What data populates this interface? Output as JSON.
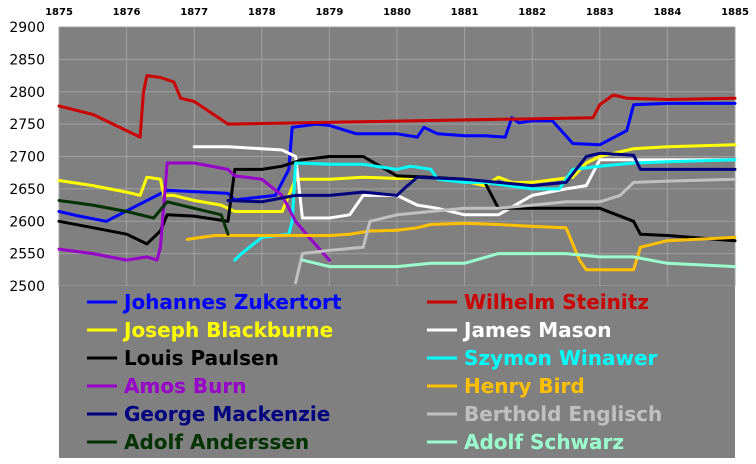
{
  "chart_data": {
    "type": "line",
    "x_ticks": [
      "1875",
      "1876",
      "1877",
      "1878",
      "1879",
      "1880",
      "1881",
      "1882",
      "1883",
      "1884",
      "1885"
    ],
    "y_ticks": [
      "2900",
      "2850",
      "2800",
      "2750",
      "2700",
      "2650",
      "2600",
      "2550",
      "2500"
    ],
    "xlim": [
      1875,
      1885
    ],
    "ylim": [
      2500,
      2900
    ],
    "grid": true,
    "background": "#808080",
    "grid_color": "#a0a0a0",
    "legend_placement": "bottom-inside",
    "series": [
      {
        "name": "Johannes Zukertort",
        "color": "#0000ff",
        "points": [
          [
            1875,
            2615
          ],
          [
            1875.3,
            2608
          ],
          [
            1875.7,
            2600
          ],
          [
            1876.6,
            2648
          ],
          [
            1877.5,
            2643
          ],
          [
            1877.6,
            2633
          ],
          [
            1878.2,
            2640
          ],
          [
            1878.4,
            2680
          ],
          [
            1878.45,
            2745
          ],
          [
            1878.8,
            2750
          ],
          [
            1879,
            2748
          ],
          [
            1879.4,
            2735
          ],
          [
            1880,
            2735
          ],
          [
            1880.3,
            2730
          ],
          [
            1880.4,
            2745
          ],
          [
            1880.6,
            2735
          ],
          [
            1881,
            2732
          ],
          [
            1881.3,
            2732
          ],
          [
            1881.6,
            2730
          ],
          [
            1881.7,
            2760
          ],
          [
            1881.8,
            2752
          ],
          [
            1882,
            2755
          ],
          [
            1882.3,
            2755
          ],
          [
            1882.6,
            2720
          ],
          [
            1883,
            2718
          ],
          [
            1883.4,
            2740
          ],
          [
            1883.5,
            2780
          ],
          [
            1884,
            2782
          ],
          [
            1885,
            2782
          ]
        ]
      },
      {
        "name": "Wilhelm Steinitz",
        "color": "#cc0000",
        "points": [
          [
            1875,
            2778
          ],
          [
            1875.5,
            2765
          ],
          [
            1875.9,
            2745
          ],
          [
            1876.2,
            2730
          ],
          [
            1876.25,
            2800
          ],
          [
            1876.3,
            2825
          ],
          [
            1876.5,
            2822
          ],
          [
            1876.7,
            2815
          ],
          [
            1876.8,
            2790
          ],
          [
            1877,
            2785
          ],
          [
            1877.5,
            2750
          ],
          [
            1882.9,
            2760
          ],
          [
            1883,
            2780
          ],
          [
            1883.2,
            2795
          ],
          [
            1883.4,
            2790
          ],
          [
            1884,
            2788
          ],
          [
            1885,
            2790
          ]
        ]
      },
      {
        "name": "Joseph Blackburne",
        "color": "#ffff00",
        "points": [
          [
            1875,
            2663
          ],
          [
            1875.5,
            2655
          ],
          [
            1876,
            2645
          ],
          [
            1876.2,
            2640
          ],
          [
            1876.3,
            2668
          ],
          [
            1876.5,
            2665
          ],
          [
            1876.55,
            2640
          ],
          [
            1876.7,
            2640
          ],
          [
            1877,
            2632
          ],
          [
            1877.4,
            2625
          ],
          [
            1877.6,
            2615
          ],
          [
            1878.3,
            2615
          ],
          [
            1878.5,
            2665
          ],
          [
            1879,
            2665
          ],
          [
            1879.5,
            2668
          ],
          [
            1880,
            2666
          ],
          [
            1880.5,
            2668
          ],
          [
            1881,
            2662
          ],
          [
            1881.3,
            2655
          ],
          [
            1881.5,
            2668
          ],
          [
            1881.7,
            2660
          ],
          [
            1882,
            2660
          ],
          [
            1882.6,
            2668
          ],
          [
            1882.8,
            2690
          ],
          [
            1883,
            2700
          ],
          [
            1883.5,
            2712
          ],
          [
            1884,
            2715
          ],
          [
            1885,
            2718
          ]
        ]
      },
      {
        "name": "James Mason",
        "color": "#ffffff",
        "points": [
          [
            1877,
            2715
          ],
          [
            1877.5,
            2715
          ],
          [
            1878,
            2712
          ],
          [
            1878.3,
            2710
          ],
          [
            1878.5,
            2700
          ],
          [
            1878.6,
            2605
          ],
          [
            1879,
            2605
          ],
          [
            1879.3,
            2610
          ],
          [
            1879.5,
            2640
          ],
          [
            1880,
            2640
          ],
          [
            1880.3,
            2625
          ],
          [
            1880.6,
            2620
          ],
          [
            1881,
            2610
          ],
          [
            1881.5,
            2610
          ],
          [
            1882,
            2640
          ],
          [
            1882.5,
            2650
          ],
          [
            1882.8,
            2655
          ],
          [
            1883,
            2695
          ],
          [
            1884,
            2695
          ],
          [
            1885,
            2695
          ]
        ]
      },
      {
        "name": "Louis Paulsen",
        "color": "#000000",
        "points": [
          [
            1875,
            2600
          ],
          [
            1875.5,
            2590
          ],
          [
            1876,
            2580
          ],
          [
            1876.3,
            2565
          ],
          [
            1876.4,
            2575
          ],
          [
            1876.5,
            2585
          ],
          [
            1876.6,
            2610
          ],
          [
            1877,
            2608
          ],
          [
            1877.5,
            2600
          ],
          [
            1877.6,
            2680
          ],
          [
            1878,
            2680
          ],
          [
            1878.3,
            2685
          ],
          [
            1878.6,
            2695
          ],
          [
            1879,
            2700
          ],
          [
            1879.5,
            2700
          ],
          [
            1880,
            2670
          ],
          [
            1880.5,
            2668
          ],
          [
            1881,
            2665
          ],
          [
            1881.3,
            2660
          ],
          [
            1881.5,
            2620
          ],
          [
            1882,
            2620
          ],
          [
            1882.5,
            2620
          ],
          [
            1883,
            2620
          ],
          [
            1883.5,
            2600
          ],
          [
            1883.6,
            2580
          ],
          [
            1884,
            2578
          ],
          [
            1885,
            2570
          ]
        ]
      },
      {
        "name": "Szymon Winawer",
        "color": "#00ffff",
        "points": [
          [
            1877.6,
            2540
          ],
          [
            1877.7,
            2550
          ],
          [
            1878,
            2575
          ],
          [
            1878.4,
            2580
          ],
          [
            1878.45,
            2600
          ],
          [
            1878.5,
            2690
          ],
          [
            1879,
            2688
          ],
          [
            1879.5,
            2688
          ],
          [
            1880,
            2680
          ],
          [
            1880.2,
            2685
          ],
          [
            1880.5,
            2680
          ],
          [
            1880.6,
            2665
          ],
          [
            1881,
            2660
          ],
          [
            1881.3,
            2660
          ],
          [
            1882,
            2650
          ],
          [
            1882.4,
            2650
          ],
          [
            1882.6,
            2680
          ],
          [
            1883,
            2685
          ],
          [
            1883.5,
            2690
          ],
          [
            1884,
            2692
          ],
          [
            1885,
            2695
          ]
        ]
      },
      {
        "name": "Amos Burn",
        "color": "#9900cc",
        "points": [
          [
            1875,
            2557
          ],
          [
            1875.5,
            2550
          ],
          [
            1876,
            2540
          ],
          [
            1876.3,
            2545
          ],
          [
            1876.45,
            2540
          ],
          [
            1876.5,
            2560
          ],
          [
            1876.6,
            2690
          ],
          [
            1877,
            2690
          ],
          [
            1877.5,
            2680
          ],
          [
            1877.6,
            2670
          ],
          [
            1878,
            2665
          ],
          [
            1878.3,
            2640
          ],
          [
            1878.5,
            2600
          ],
          [
            1878.7,
            2575
          ],
          [
            1879,
            2540
          ]
        ]
      },
      {
        "name": "Henry Bird",
        "color": "#ffc000",
        "points": [
          [
            1876.9,
            2572
          ],
          [
            1877.3,
            2578
          ],
          [
            1879,
            2578
          ],
          [
            1879.3,
            2580
          ],
          [
            1879.6,
            2585
          ],
          [
            1880,
            2586
          ],
          [
            1880.3,
            2590
          ],
          [
            1880.5,
            2595
          ],
          [
            1881,
            2597
          ],
          [
            1881.5,
            2595
          ],
          [
            1882,
            2592
          ],
          [
            1882.5,
            2590
          ],
          [
            1882.7,
            2540
          ],
          [
            1882.8,
            2525
          ],
          [
            1883.5,
            2525
          ],
          [
            1883.6,
            2560
          ],
          [
            1884,
            2570
          ],
          [
            1885,
            2575
          ]
        ]
      },
      {
        "name": "George Mackenzie",
        "color": "#000080",
        "points": [
          [
            1877.5,
            2632
          ],
          [
            1878,
            2630
          ],
          [
            1878.5,
            2640
          ],
          [
            1879,
            2640
          ],
          [
            1879.5,
            2645
          ],
          [
            1880,
            2640
          ],
          [
            1880.1,
            2650
          ],
          [
            1880.3,
            2668
          ],
          [
            1881,
            2665
          ],
          [
            1881.5,
            2660
          ],
          [
            1882,
            2655
          ],
          [
            1882.5,
            2660
          ],
          [
            1882.8,
            2700
          ],
          [
            1883,
            2705
          ],
          [
            1883.5,
            2702
          ],
          [
            1883.6,
            2680
          ],
          [
            1884,
            2680
          ],
          [
            1885,
            2680
          ]
        ]
      },
      {
        "name": "Berthold Englisch",
        "color": "#c0c0c0",
        "points": [
          [
            1878.5,
            2505
          ],
          [
            1878.6,
            2550
          ],
          [
            1879,
            2555
          ],
          [
            1879.5,
            2560
          ],
          [
            1879.6,
            2600
          ],
          [
            1880,
            2610
          ],
          [
            1880.5,
            2615
          ],
          [
            1881,
            2620
          ],
          [
            1881.5,
            2620
          ],
          [
            1882,
            2625
          ],
          [
            1882.5,
            2630
          ],
          [
            1882.8,
            2630
          ],
          [
            1883,
            2630
          ],
          [
            1883.3,
            2640
          ],
          [
            1883.5,
            2660
          ],
          [
            1884,
            2662
          ],
          [
            1885,
            2665
          ]
        ]
      },
      {
        "name": "Adolf Anderssen",
        "color": "#003300",
        "points": [
          [
            1875,
            2632
          ],
          [
            1875.5,
            2625
          ],
          [
            1876,
            2615
          ],
          [
            1876.4,
            2605
          ],
          [
            1876.6,
            2630
          ],
          [
            1877,
            2620
          ],
          [
            1877.4,
            2610
          ],
          [
            1877.5,
            2580
          ]
        ]
      },
      {
        "name": "Adolf Schwarz",
        "color": "#99ffcc",
        "points": [
          [
            1878.6,
            2540
          ],
          [
            1879,
            2530
          ],
          [
            1879.5,
            2530
          ],
          [
            1880,
            2530
          ],
          [
            1880.5,
            2535
          ],
          [
            1881,
            2535
          ],
          [
            1881.5,
            2550
          ],
          [
            1882,
            2550
          ],
          [
            1882.5,
            2550
          ],
          [
            1883,
            2545
          ],
          [
            1883.5,
            2545
          ],
          [
            1884,
            2535
          ],
          [
            1885,
            2530
          ]
        ]
      }
    ]
  }
}
